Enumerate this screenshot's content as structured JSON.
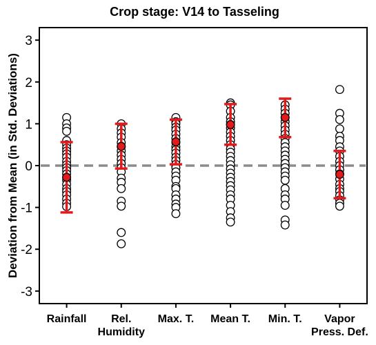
{
  "chart_data": {
    "type": "scatter",
    "title": "Crop stage: V14 to Tasseling",
    "xlabel": "",
    "ylabel": "Deviation from Mean (in Std. Deviations)",
    "ylim": [
      -3.3,
      3.3
    ],
    "yticks": [
      -3,
      -2,
      -1,
      0,
      1,
      2,
      3
    ],
    "categories": [
      [
        "Rainfall"
      ],
      [
        "Rel.",
        "Humidity"
      ],
      [
        "Max. T."
      ],
      [
        "Mean T."
      ],
      [
        "Min. T."
      ],
      [
        "Vapor",
        "Press. Def."
      ]
    ],
    "reference_line": {
      "y": 0,
      "style": "dashed",
      "color": "#8c8c8c"
    },
    "point_color": "#000000",
    "summary_color": "#e31a1c",
    "points": [
      [
        1.15,
        1.0,
        0.9,
        0.82,
        0.6,
        0.5,
        0.42,
        0.35,
        0.28,
        0.2,
        0.1,
        0.02,
        -0.05,
        -0.12,
        -0.2,
        -0.28,
        -0.35,
        -0.45,
        -0.55,
        -0.62,
        -0.7,
        -0.8,
        -0.9,
        -0.98
      ],
      [
        1.0,
        0.88,
        0.78,
        0.68,
        0.55,
        0.45,
        0.35,
        0.25,
        0.15,
        0.05,
        -0.05,
        -0.15,
        -0.3,
        -0.4,
        -0.55,
        -0.85,
        -0.97,
        -1.6,
        -1.87
      ],
      [
        1.15,
        1.05,
        1.0,
        0.92,
        0.85,
        0.75,
        0.65,
        0.55,
        0.45,
        0.38,
        0.3,
        0.2,
        0.12,
        0.03,
        -0.05,
        -0.15,
        -0.25,
        -0.35,
        -0.5,
        -0.55,
        -0.7,
        -0.8,
        -0.92,
        -1.0,
        -1.15
      ],
      [
        1.5,
        1.45,
        1.3,
        1.15,
        1.05,
        0.98,
        0.9,
        0.8,
        0.7,
        0.6,
        0.5,
        0.4,
        0.32,
        0.22,
        0.12,
        0.02,
        -0.08,
        -0.18,
        -0.28,
        -0.38,
        -0.48,
        -0.58,
        -0.7,
        -0.8,
        -0.95,
        -1.1,
        -1.25,
        -1.35
      ],
      [
        1.45,
        1.35,
        1.25,
        1.15,
        1.05,
        0.95,
        0.85,
        0.75,
        0.65,
        0.55,
        0.45,
        0.35,
        0.25,
        0.15,
        0.05,
        -0.05,
        -0.15,
        -0.25,
        -0.35,
        -0.55,
        -0.7,
        -0.8,
        -0.95,
        -1.3,
        -1.42
      ],
      [
        1.82,
        1.25,
        1.1,
        0.88,
        0.7,
        0.6,
        0.45,
        0.35,
        0.22,
        0.1,
        0.0,
        -0.1,
        -0.2,
        -0.32,
        -0.45,
        -0.55,
        -0.62,
        -0.72,
        -0.82,
        -0.9,
        -0.97
      ]
    ],
    "summary": [
      {
        "mean": -0.28,
        "lower": -1.12,
        "upper": 0.56
      },
      {
        "mean": 0.46,
        "lower": -0.07,
        "upper": 1.0
      },
      {
        "mean": 0.57,
        "lower": 0.03,
        "upper": 1.1
      },
      {
        "mean": 0.98,
        "lower": 0.5,
        "upper": 1.47
      },
      {
        "mean": 1.15,
        "lower": 0.68,
        "upper": 1.6
      },
      {
        "mean": -0.21,
        "lower": -0.78,
        "upper": 0.35
      }
    ]
  }
}
